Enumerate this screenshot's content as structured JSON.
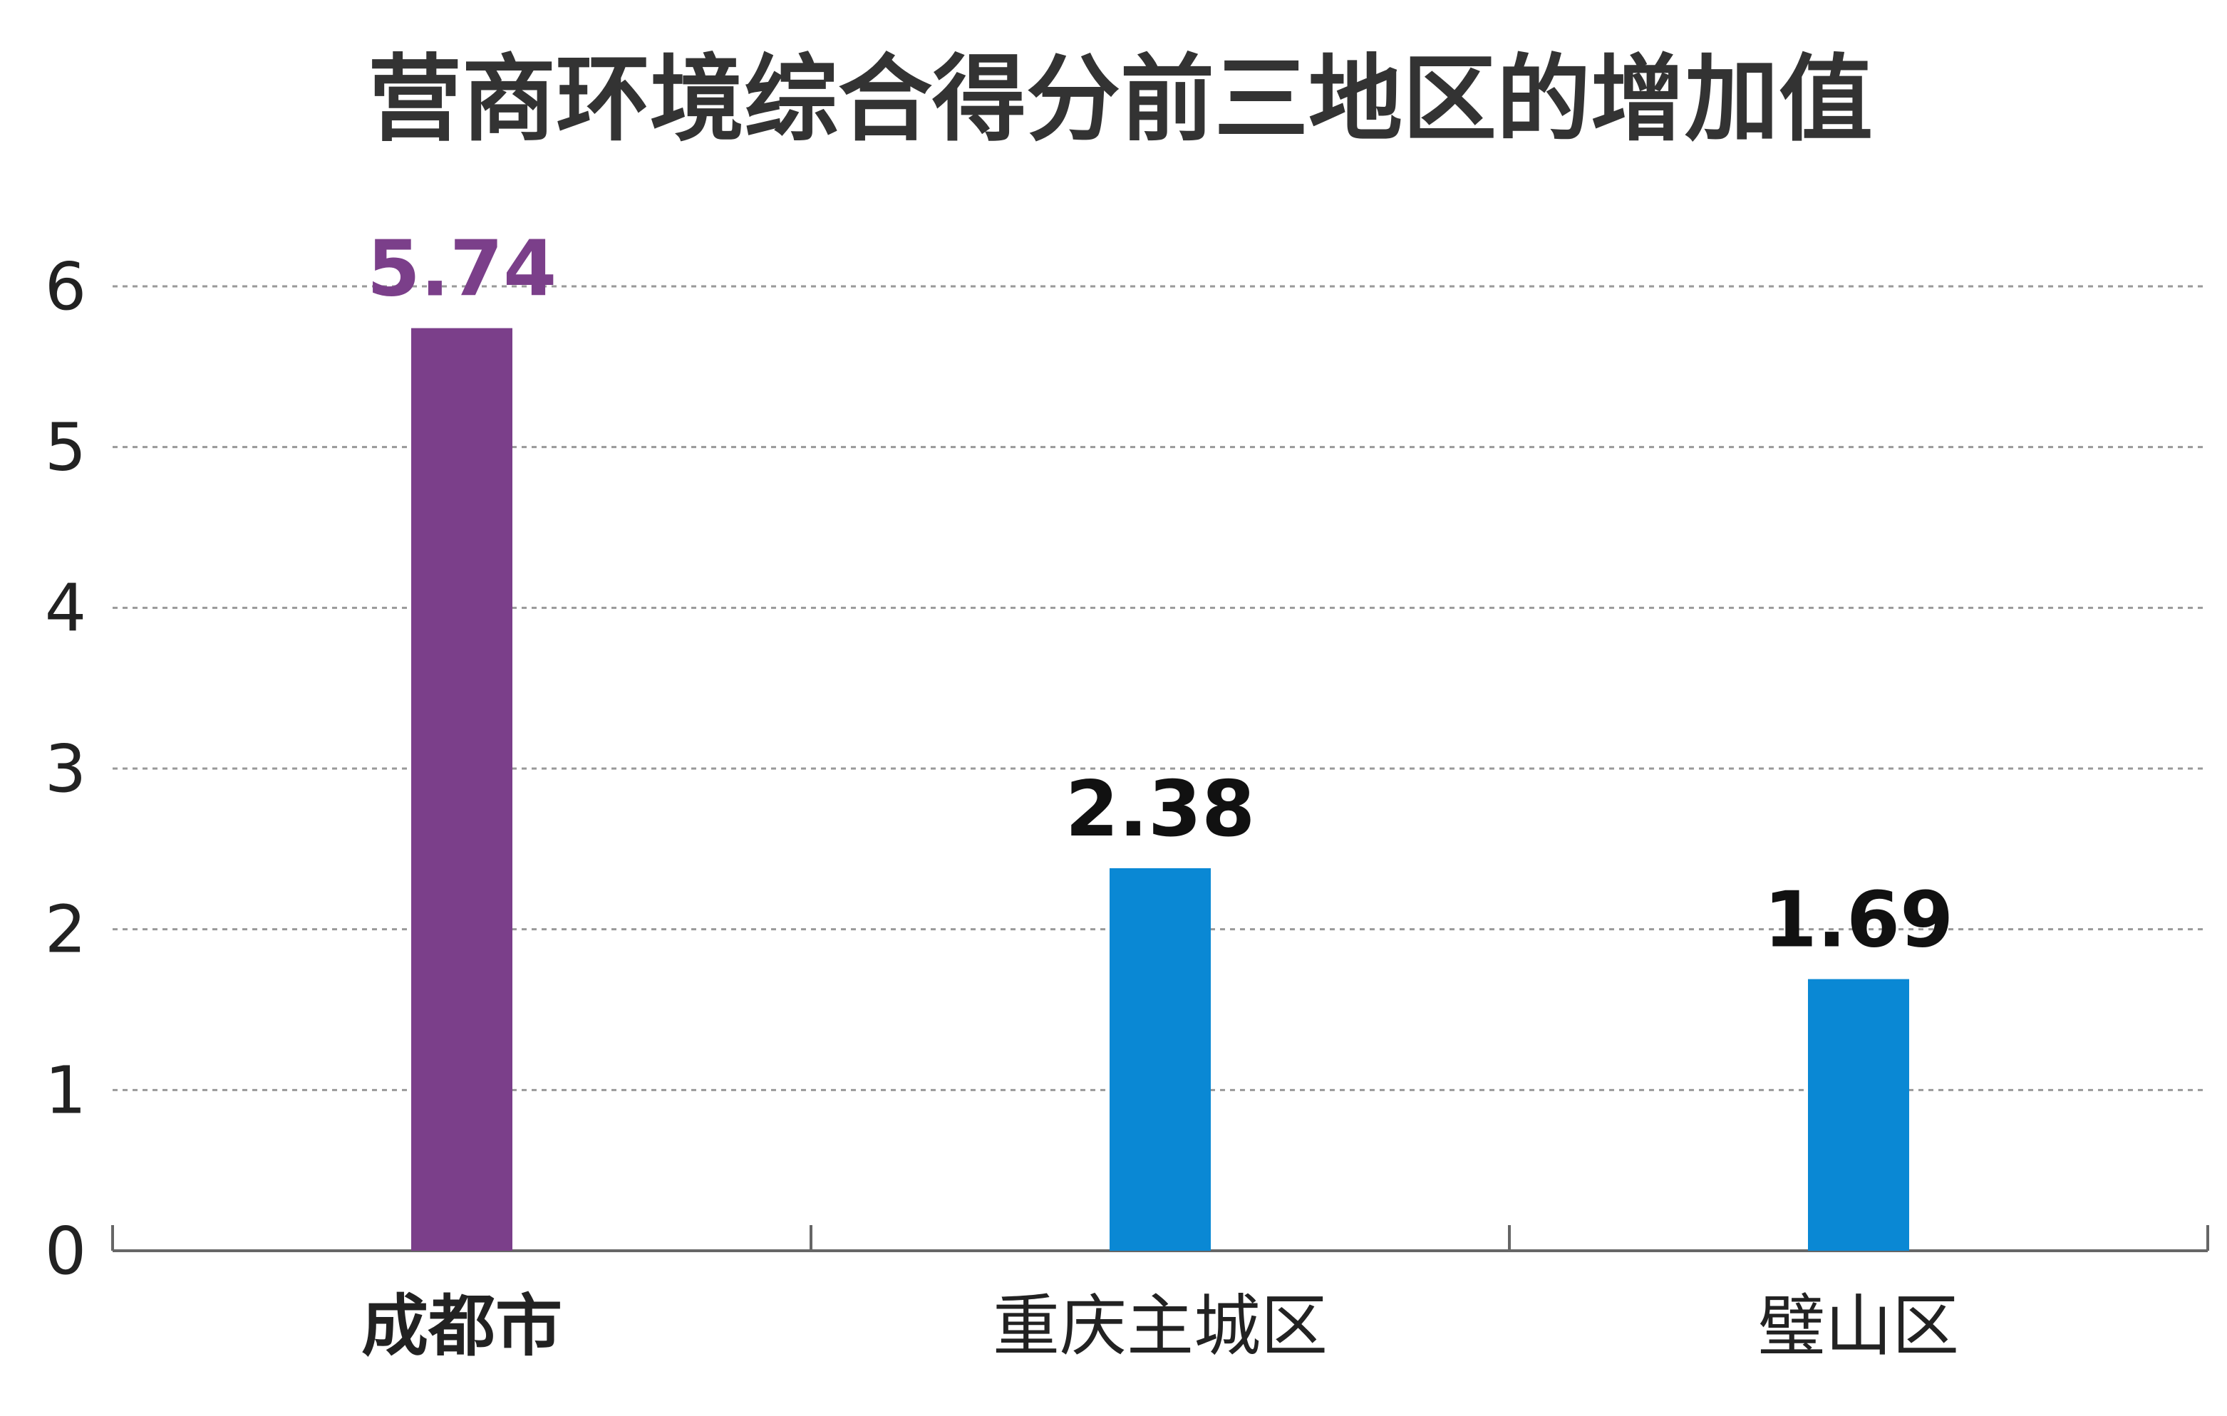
{
  "chart_data": {
    "type": "bar",
    "title": "营商环境综合得分前三地区的增加值",
    "categories": [
      "成都市",
      "重庆主城区",
      "璧山区"
    ],
    "values": [
      5.74,
      2.38,
      1.69
    ],
    "value_labels": [
      "5.74",
      "2.38",
      "1.69"
    ],
    "ylim": [
      0,
      6
    ],
    "yticks": [
      0,
      1,
      2,
      3,
      4,
      5,
      6
    ],
    "xlabel": "",
    "ylabel": "",
    "grid": true,
    "legend": "none",
    "bar_colors": [
      "#7b3f8a",
      "#0a88d4",
      "#0a88d4"
    ],
    "label_colors": [
      "#7b3f8a",
      "#111111",
      "#111111"
    ],
    "highlighted_category": "成都市",
    "gridline_color": "#999999",
    "axis_color": "#666666"
  }
}
